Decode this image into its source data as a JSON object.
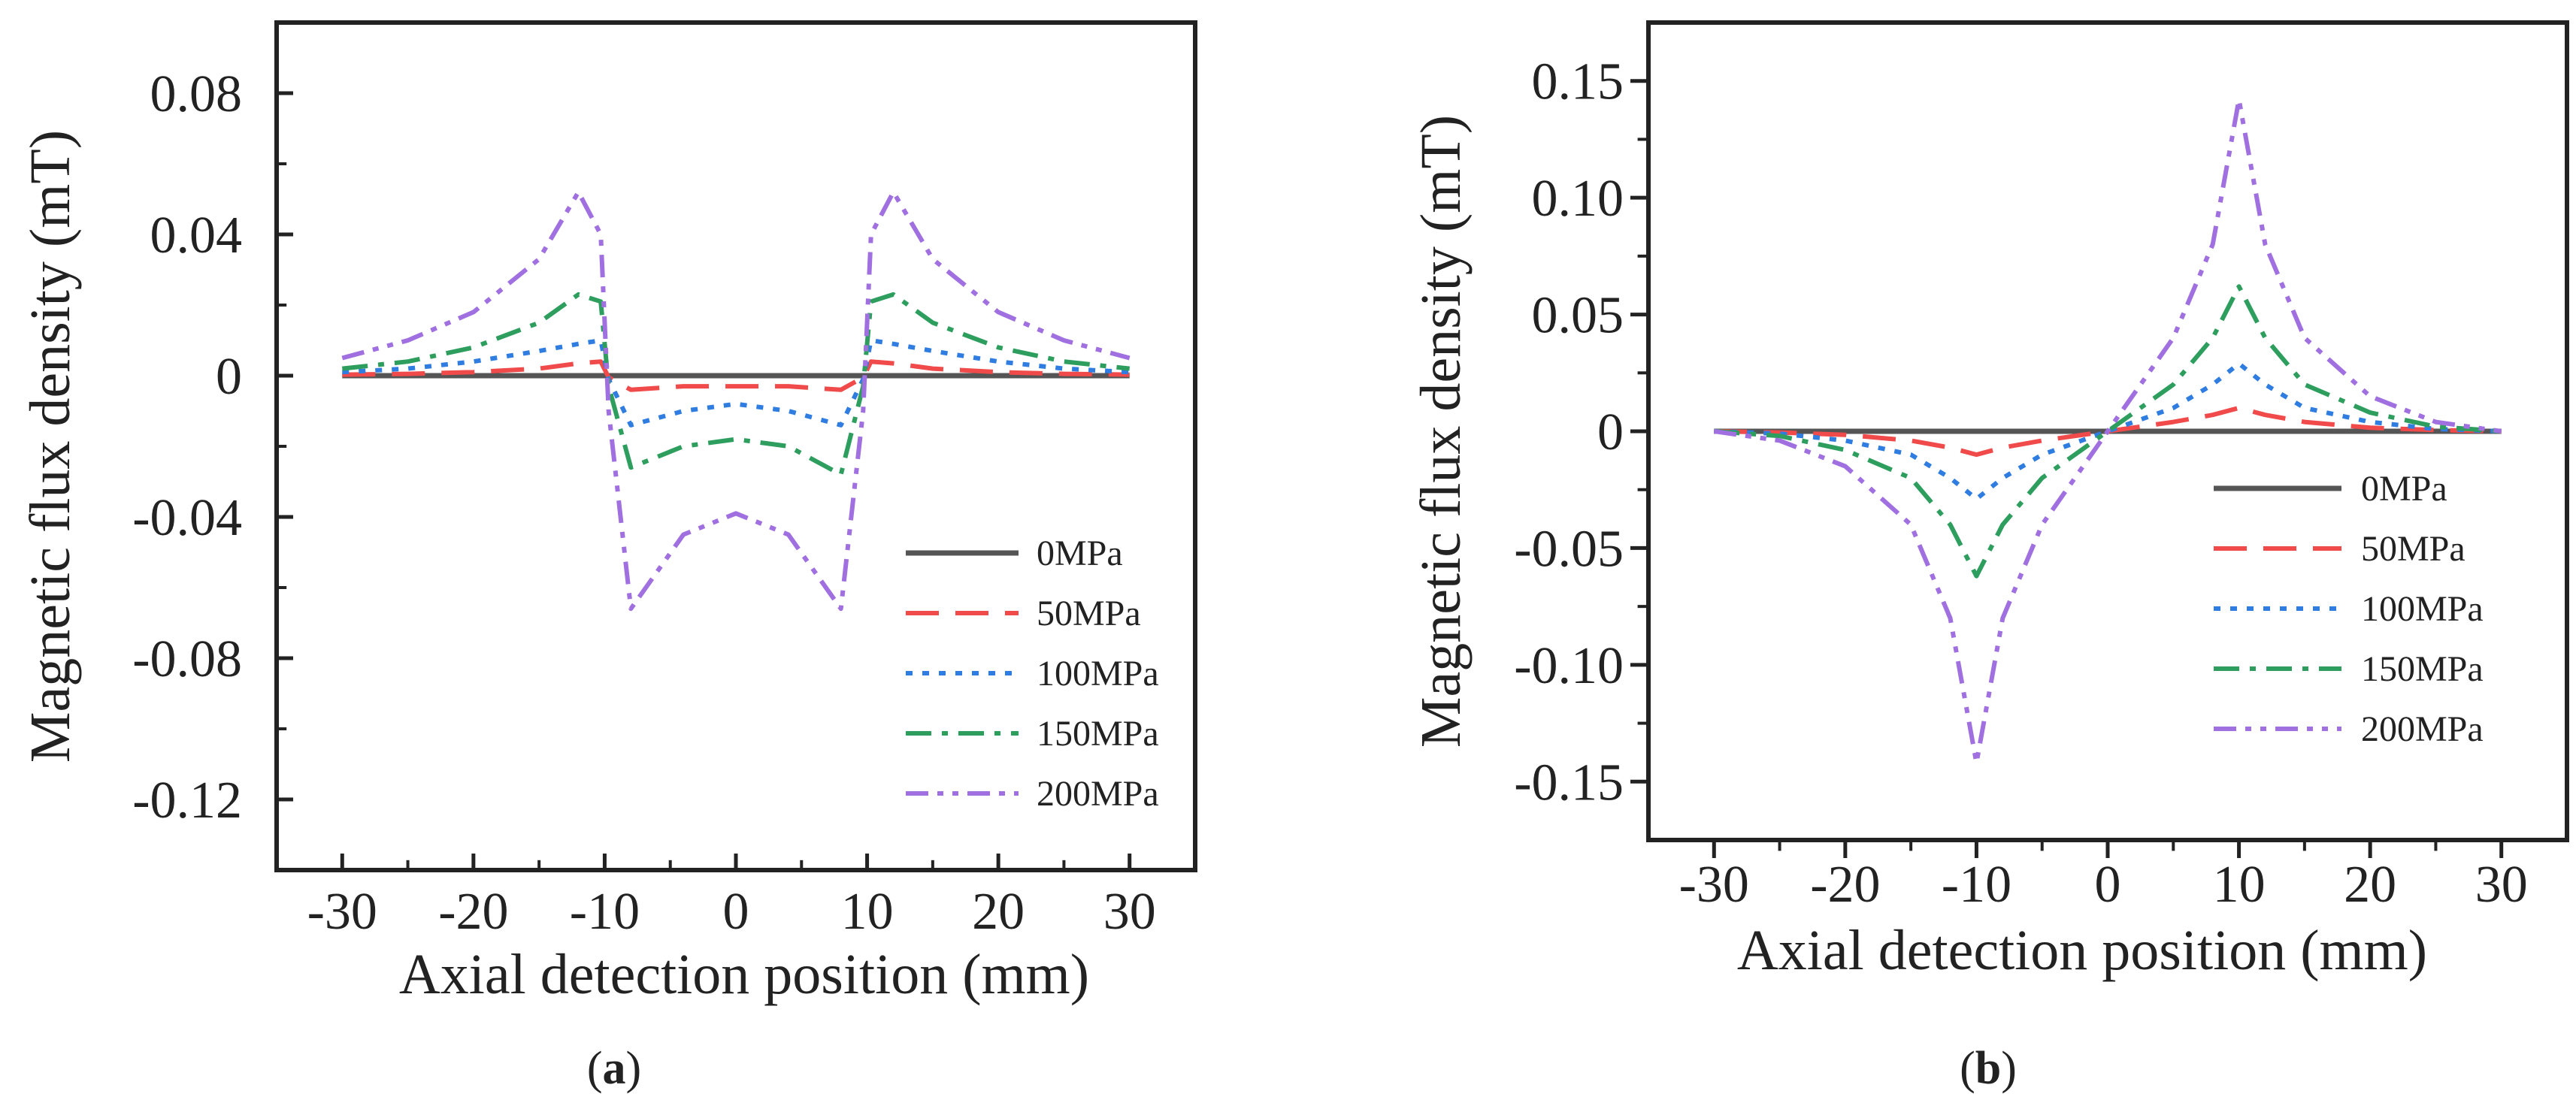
{
  "chart_data": [
    {
      "type": "line",
      "panel_label": "a",
      "xlabel": "Axial detection position (mm)",
      "ylabel": "Magnetic flux density (mT)",
      "xlim": [
        -35,
        35
      ],
      "ylim": [
        -0.14,
        0.1
      ],
      "x_ticks": [
        -30,
        -20,
        -10,
        0,
        10,
        20,
        30
      ],
      "x_tick_labels": [
        "-30",
        "-20",
        "-10",
        "0",
        "10",
        "20",
        "30"
      ],
      "y_ticks": [
        0.08,
        0.04,
        0,
        -0.04,
        -0.08,
        -0.12
      ],
      "y_tick_labels": [
        "0.08",
        "0.04",
        "0",
        "-0.04",
        "-0.08",
        "-0.12"
      ],
      "legend_position": "lower-right",
      "series": [
        {
          "name": "0MPa",
          "color": "#555555",
          "dash": "solid",
          "x": [
            -30,
            30
          ],
          "y": [
            0,
            0
          ]
        },
        {
          "name": "50MPa",
          "color": "#f04a4a",
          "dash": "long-dash",
          "x": [
            -30,
            -25,
            -20,
            -15,
            -12,
            -10.3,
            -9.7,
            -8,
            -4,
            0,
            4,
            8,
            9.7,
            10.3,
            12,
            15,
            20,
            25,
            30
          ],
          "y": [
            0.0003,
            0.0005,
            0.001,
            0.002,
            0.0035,
            0.004,
            -0.0005,
            -0.004,
            -0.003,
            -0.003,
            -0.003,
            -0.004,
            -0.0005,
            0.004,
            0.0035,
            0.002,
            0.001,
            0.0005,
            0.0003
          ]
        },
        {
          "name": "100MPa",
          "color": "#2f7de1",
          "dash": "dot",
          "x": [
            -30,
            -25,
            -20,
            -15,
            -12,
            -10.3,
            -9.7,
            -8,
            -4,
            0,
            4,
            8,
            9.7,
            10.3,
            12,
            15,
            20,
            25,
            30
          ],
          "y": [
            0.001,
            0.002,
            0.004,
            0.007,
            0.009,
            0.01,
            -0.001,
            -0.014,
            -0.01,
            -0.008,
            -0.01,
            -0.014,
            -0.001,
            0.01,
            0.009,
            0.007,
            0.004,
            0.002,
            0.001
          ]
        },
        {
          "name": "150MPa",
          "color": "#2e9e5e",
          "dash": "dash-dot",
          "x": [
            -30,
            -25,
            -20,
            -15,
            -12,
            -10.3,
            -9.7,
            -8,
            -4,
            0,
            4,
            8,
            9.7,
            10.3,
            12,
            15,
            20,
            25,
            30
          ],
          "y": [
            0.002,
            0.004,
            0.008,
            0.015,
            0.023,
            0.021,
            -0.003,
            -0.026,
            -0.02,
            -0.018,
            -0.02,
            -0.028,
            -0.003,
            0.021,
            0.023,
            0.015,
            0.008,
            0.004,
            0.002
          ]
        },
        {
          "name": "200MPa",
          "color": "#a070e0",
          "dash": "dash-dot-dot",
          "x": [
            -30,
            -25,
            -20,
            -15,
            -12,
            -10.3,
            -9.7,
            -8,
            -4,
            0,
            4,
            8,
            9.7,
            10.3,
            12,
            15,
            20,
            25,
            30
          ],
          "y": [
            0.005,
            0.01,
            0.018,
            0.033,
            0.052,
            0.04,
            -0.01,
            -0.066,
            -0.045,
            -0.039,
            -0.045,
            -0.066,
            -0.01,
            0.04,
            0.052,
            0.033,
            0.018,
            0.01,
            0.005
          ]
        }
      ]
    },
    {
      "type": "line",
      "panel_label": "b",
      "xlabel": "Axial detection position (mm)",
      "ylabel": "Magnetic flux density (mT)",
      "xlim": [
        -35,
        35
      ],
      "ylim": [
        -0.175,
        0.175
      ],
      "x_ticks": [
        -30,
        -20,
        -10,
        0,
        10,
        20,
        30
      ],
      "x_tick_labels": [
        "-30",
        "-20",
        "-10",
        "0",
        "10",
        "20",
        "30"
      ],
      "y_ticks": [
        0.15,
        0.1,
        0.05,
        0,
        -0.05,
        -0.1,
        -0.15
      ],
      "y_tick_labels": [
        "0.15",
        "0.10",
        "0.05",
        "0",
        "-0.05",
        "-0.10",
        "-0.15"
      ],
      "legend_position": "lower-right",
      "series": [
        {
          "name": "0MPa",
          "color": "#555555",
          "dash": "solid",
          "x": [
            -30,
            30
          ],
          "y": [
            0,
            0
          ]
        },
        {
          "name": "50MPa",
          "color": "#f04a4a",
          "dash": "long-dash",
          "x": [
            -30,
            -25,
            -20,
            -15,
            -12,
            -10,
            -8,
            -5,
            0,
            5,
            8,
            10,
            12,
            15,
            20,
            25,
            30
          ],
          "y": [
            0,
            -0.0005,
            -0.0015,
            -0.004,
            -0.007,
            -0.01,
            -0.007,
            -0.004,
            0,
            0.004,
            0.007,
            0.01,
            0.007,
            0.004,
            0.0015,
            0.0005,
            0
          ]
        },
        {
          "name": "100MPa",
          "color": "#2f7de1",
          "dash": "dot",
          "x": [
            -30,
            -25,
            -20,
            -15,
            -12,
            -10,
            -8,
            -5,
            0,
            5,
            8,
            10,
            12,
            15,
            20,
            25,
            30
          ],
          "y": [
            0,
            -0.001,
            -0.004,
            -0.01,
            -0.02,
            -0.029,
            -0.02,
            -0.01,
            0,
            0.01,
            0.02,
            0.029,
            0.02,
            0.01,
            0.004,
            0.001,
            0
          ]
        },
        {
          "name": "150MPa",
          "color": "#2e9e5e",
          "dash": "dash-dot",
          "x": [
            -30,
            -25,
            -20,
            -15,
            -12,
            -10,
            -8,
            -5,
            0,
            5,
            8,
            10,
            12,
            15,
            20,
            25,
            30
          ],
          "y": [
            0,
            -0.002,
            -0.008,
            -0.02,
            -0.04,
            -0.062,
            -0.04,
            -0.02,
            0,
            0.02,
            0.04,
            0.062,
            0.04,
            0.02,
            0.008,
            0.002,
            0
          ]
        },
        {
          "name": "200MPa",
          "color": "#a070e0",
          "dash": "dash-dot-dot",
          "x": [
            -30,
            -25,
            -20,
            -15,
            -12,
            -10,
            -8,
            -5,
            0,
            5,
            8,
            10,
            12,
            15,
            20,
            25,
            30
          ],
          "y": [
            0,
            -0.004,
            -0.015,
            -0.04,
            -0.08,
            -0.142,
            -0.08,
            -0.04,
            0,
            0.04,
            0.08,
            0.142,
            0.08,
            0.04,
            0.015,
            0.004,
            0
          ]
        }
      ]
    }
  ]
}
